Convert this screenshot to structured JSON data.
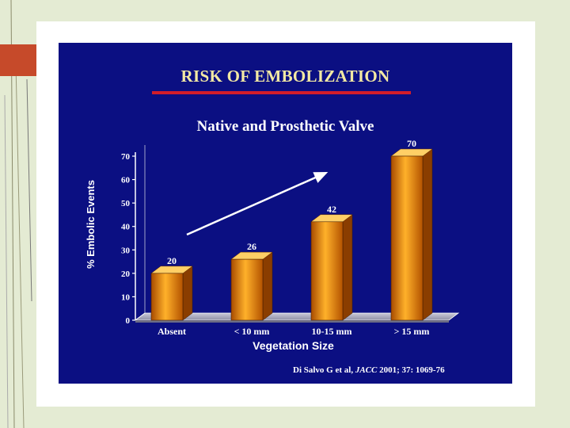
{
  "slide": {
    "title": "RISK OF EMBOLIZATION",
    "citation_prefix": "Di Salvo G et al, ",
    "citation_journal": "JACC",
    "citation_suffix": " 2001; 37: 1069-76"
  },
  "colors": {
    "slide_background": "#0b0f82",
    "bar": "#e88a0c",
    "title": "#f3e9a3",
    "underline": "#d21d2a",
    "accent": "#c64a2a"
  },
  "chart_data": {
    "type": "bar",
    "title": "Native and Prosthetic Valve",
    "xlabel": "Vegetation Size",
    "ylabel": "% Embolic Events",
    "categories": [
      "Absent",
      "< 10 mm",
      "10-15 mm",
      "> 15 mm"
    ],
    "values": [
      20,
      26,
      42,
      70
    ],
    "data_labels": [
      "20",
      "26",
      "42",
      "70"
    ],
    "yticks": [
      "0",
      "10",
      "20",
      "30",
      "40",
      "50",
      "60",
      "70"
    ],
    "ylim": [
      0,
      70
    ],
    "grid": false,
    "legend": "none",
    "annotation": "arrow indicating increasing trend"
  }
}
